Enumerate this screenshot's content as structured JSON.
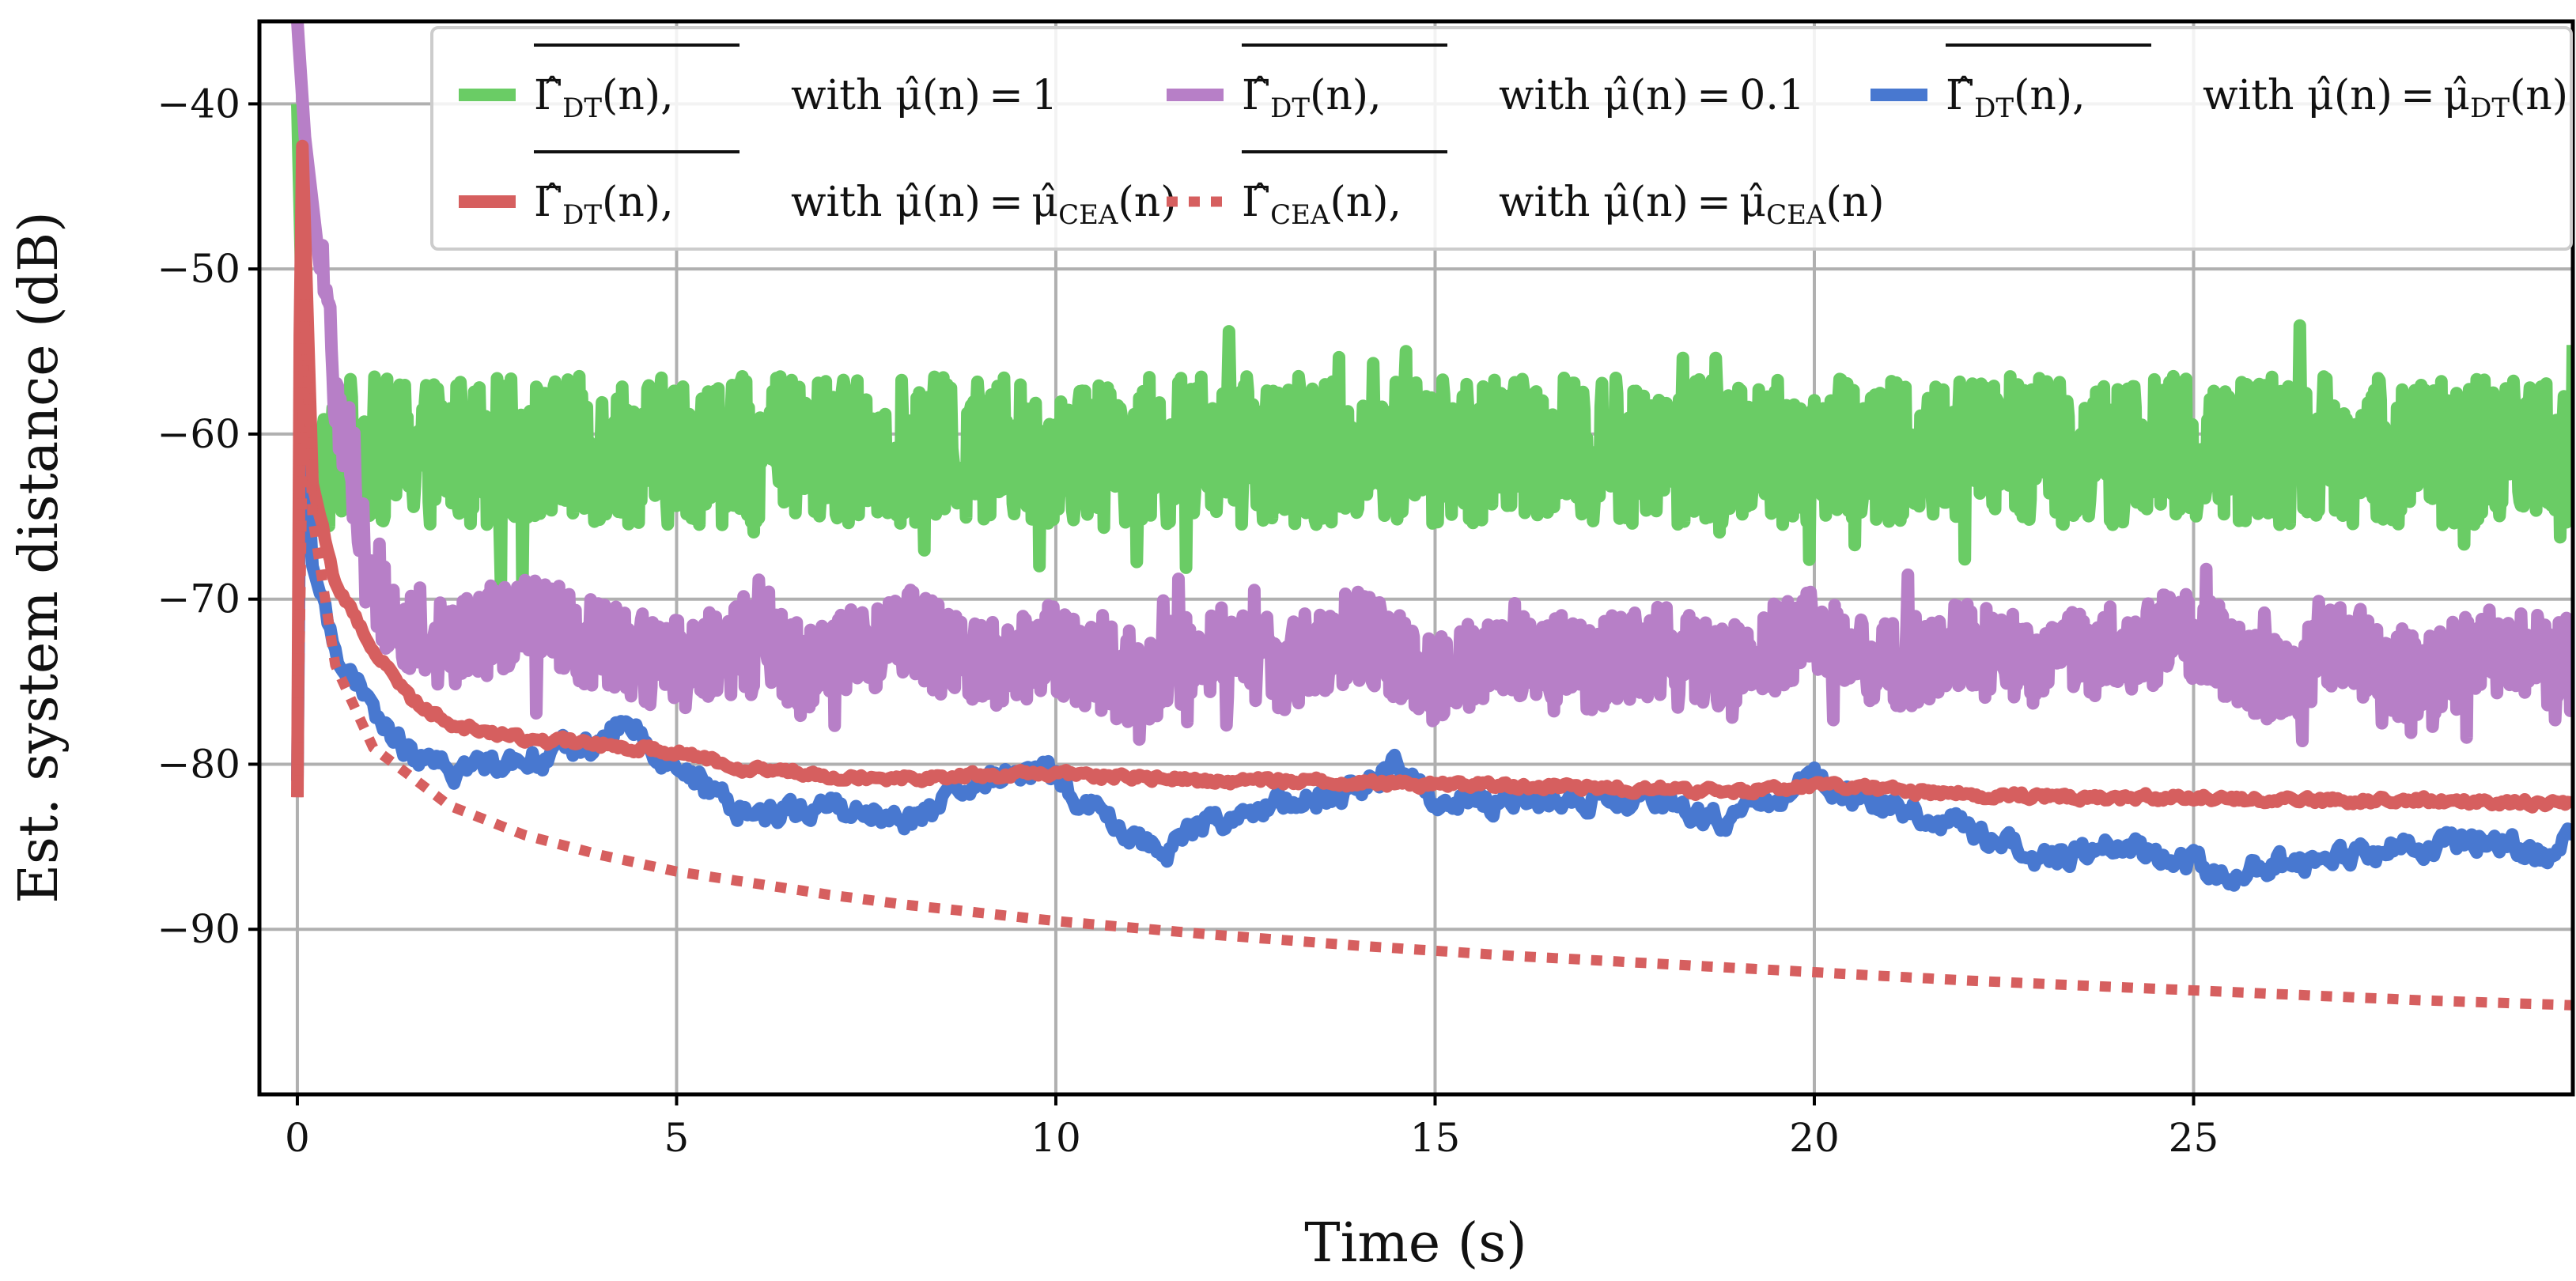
{
  "chart_data": {
    "type": "line",
    "xlabel": "Time (s)",
    "ylabel": "Est. system distance (dB)",
    "xlim": [
      -0.5,
      30
    ],
    "ylim": [
      -100,
      -35
    ],
    "x_ticks": [
      0,
      5,
      10,
      15,
      20,
      25
    ],
    "y_ticks": [
      -40,
      -50,
      -60,
      -70,
      -80,
      -90
    ],
    "x_tick_labels": [
      "0",
      "5",
      "10",
      "15",
      "20",
      "25"
    ],
    "y_tick_labels": [
      "−40",
      "−50",
      "−60",
      "−70",
      "−80",
      "−90"
    ],
    "grid": true,
    "legend_position": "top-right",
    "series": [
      {
        "name": "Γ̂_DT(n) (overlined), with μ̂(n) = 1",
        "legend_sym": "Γ̂",
        "legend_sub": "DT",
        "legend_note": "with μ̂(n) = 1",
        "color": "#6acc65",
        "style": "solid",
        "x": [
          0,
          0.1,
          0.3,
          0.6,
          1,
          2,
          3,
          4,
          5,
          6,
          7,
          8,
          9,
          10,
          11,
          12,
          13,
          14,
          15,
          16,
          17,
          18,
          19,
          20,
          21,
          22,
          23,
          24,
          25,
          26,
          27,
          28,
          29,
          30
        ],
        "values": [
          -40,
          -60,
          -62,
          -61,
          -61,
          -61,
          -61,
          -61,
          -61,
          -61,
          -61,
          -61,
          -61,
          -61,
          -61,
          -61,
          -61,
          -61,
          -61,
          -61,
          -61,
          -61,
          -61,
          -61,
          -61,
          -61,
          -61,
          -61,
          -61,
          -61,
          -61,
          -61,
          -61,
          -61
        ],
        "fluctuation_db": 4.5
      },
      {
        "name": "Γ̂_DT(n) (overlined), with μ̂(n) = 0.1",
        "legend_sym": "Γ̂",
        "legend_sub": "DT",
        "legend_note": "with μ̂(n) = 0.1",
        "color": "#b77fc7",
        "style": "solid",
        "x": [
          0,
          0.1,
          0.3,
          0.6,
          0.9,
          1.2,
          2,
          3,
          4,
          5,
          6,
          7,
          8,
          9,
          10,
          11,
          12,
          13,
          14,
          15,
          16,
          17,
          18,
          19,
          20,
          21,
          22,
          23,
          24,
          25,
          26,
          27,
          28,
          29,
          30
        ],
        "values": [
          -35,
          -42,
          -50,
          -60,
          -67,
          -71,
          -73,
          -71,
          -73,
          -74,
          -73,
          -74,
          -72,
          -74,
          -73,
          -75,
          -73,
          -74,
          -72,
          -75,
          -73,
          -74,
          -73,
          -74,
          -72,
          -74,
          -73,
          -74,
          -73,
          -72,
          -75,
          -73,
          -75,
          -73,
          -74
        ],
        "fluctuation_db": 2.8
      },
      {
        "name": "Γ̂_DT(n) (overlined), with μ̂(n) = μ̂_DT(n)",
        "legend_sym": "Γ̂",
        "legend_sub": "DT",
        "legend_note": "with μ̂(n) = μ̂",
        "legend_note_sub": "DT",
        "legend_note_tail": "(n)",
        "color": "#4878d0",
        "style": "solid",
        "x": [
          0,
          0.05,
          0.2,
          0.5,
          1,
          1.5,
          2,
          3,
          4,
          4.3,
          5,
          5.5,
          6,
          7,
          8,
          9,
          9.5,
          10,
          11,
          11.5,
          12,
          13,
          14,
          14.5,
          15,
          16,
          17,
          18,
          19,
          20,
          20.5,
          21,
          22,
          23,
          24,
          25,
          25.5,
          26,
          27,
          28,
          29,
          29.5,
          30
        ],
        "values": [
          -81,
          -55,
          -68,
          -73,
          -77,
          -79.5,
          -80.5,
          -79.5,
          -78.8,
          -77.5,
          -80,
          -82,
          -83,
          -82.5,
          -83.5,
          -81.5,
          -80,
          -81,
          -84.5,
          -85,
          -83.5,
          -82.5,
          -81.5,
          -80,
          -82,
          -82.5,
          -82,
          -82.5,
          -83.5,
          -80.5,
          -82,
          -82.5,
          -84,
          -85.5,
          -85,
          -86,
          -86.5,
          -86,
          -85.5,
          -85,
          -84.5,
          -85.5,
          -84.5
        ],
        "fluctuation_db": 0.6
      },
      {
        "name": "Γ̂_DT(n) (overlined), with μ̂(n) = μ̂_CEA(n)",
        "legend_sym": "Γ̂",
        "legend_sub": "DT",
        "legend_note": "with μ̂(n) = μ̂",
        "legend_note_sub": "CEA",
        "legend_note_tail": "(n)",
        "color": "#d65f5f",
        "style": "solid",
        "x": [
          0,
          0.05,
          0.2,
          0.5,
          1,
          1.5,
          2,
          3,
          4,
          5,
          6,
          7,
          8,
          9,
          10,
          11,
          12,
          13,
          14,
          15,
          16,
          17,
          18,
          19,
          20,
          21,
          22,
          23,
          24,
          25,
          26,
          27,
          28,
          29,
          30
        ],
        "values": [
          -82,
          -40,
          -63,
          -69,
          -73,
          -76,
          -77.5,
          -78.5,
          -78.8,
          -79.2,
          -80.3,
          -80.6,
          -80.8,
          -80.7,
          -80.6,
          -80.8,
          -81,
          -81,
          -81.1,
          -81.2,
          -81.3,
          -81.4,
          -81.5,
          -81.7,
          -81.2,
          -81.6,
          -81.8,
          -81.9,
          -82,
          -82,
          -82.1,
          -82.2,
          -82.2,
          -82.3,
          -82.3
        ],
        "fluctuation_db": 0.2
      },
      {
        "name": "Γ̂_CEA(n) (overlined), with μ̂(n) = μ̂_CEA(n)",
        "legend_sym": "Γ̂",
        "legend_sub": "CEA",
        "legend_note": "with μ̂(n) = μ̂",
        "legend_note_sub": "CEA",
        "legend_note_tail": "(n)",
        "color": "#d65f5f",
        "style": "dotted",
        "x": [
          0,
          0.05,
          0.2,
          0.5,
          1,
          2,
          3,
          4,
          5,
          6,
          7,
          8,
          9,
          10,
          12,
          14,
          16,
          18,
          20,
          22,
          24,
          26,
          28,
          30
        ],
        "values": [
          -82,
          -45,
          -65,
          -74,
          -79,
          -82.5,
          -84.3,
          -85.5,
          -86.5,
          -87.2,
          -87.9,
          -88.5,
          -89,
          -89.5,
          -90.3,
          -91,
          -91.6,
          -92.1,
          -92.6,
          -93.1,
          -93.5,
          -93.9,
          -94.3,
          -94.6
        ],
        "fluctuation_db": 0
      }
    ]
  }
}
